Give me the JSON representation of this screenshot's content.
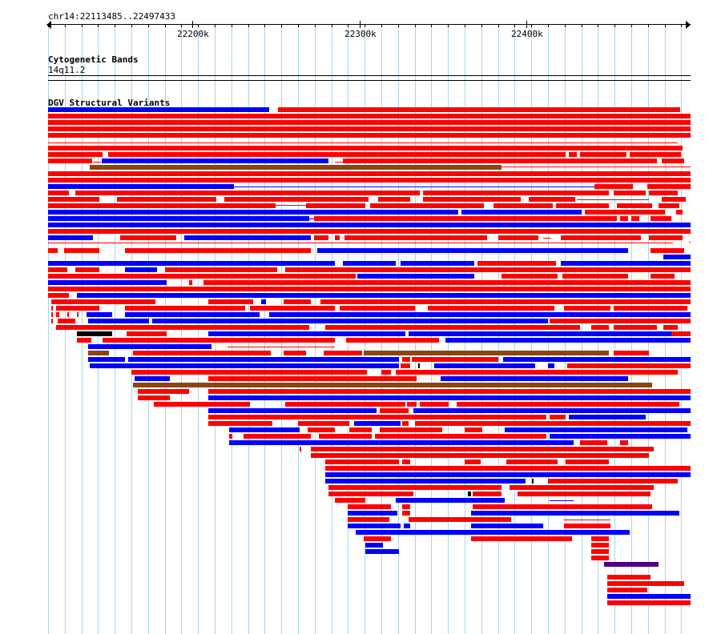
{
  "ruler": {
    "location": "chr14:22113485..22497433",
    "ticks": [
      "22200k",
      "22300k",
      "22400k"
    ]
  },
  "tracks": {
    "cytoband": {
      "title": "Cytogenetic Bands",
      "band": "14q11.2"
    },
    "dgv": {
      "title": "DGV Structural Variants"
    }
  },
  "colors": {
    "loss": "#ff0000",
    "gain": "#0000ff",
    "inversion": "#8b4513",
    "complex": "#000000",
    "other": "#4b0082",
    "grid": "#a9d6ea"
  }
}
